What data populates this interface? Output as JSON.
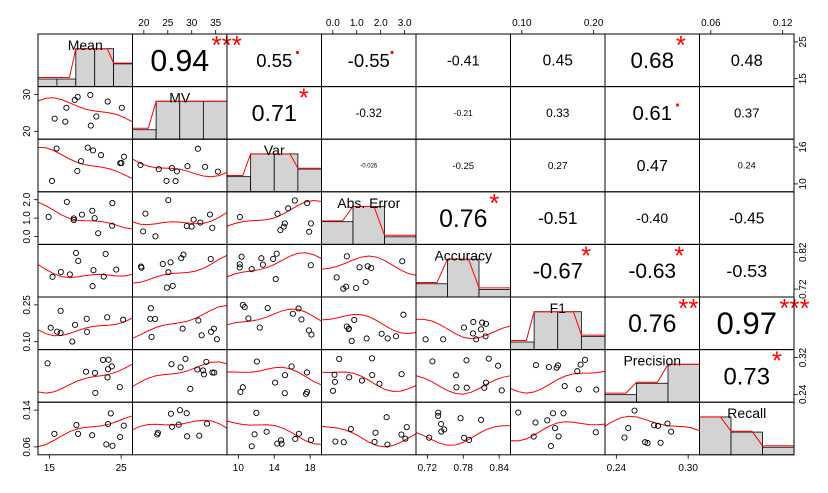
{
  "chart_data": {
    "type": "scatter",
    "variables": [
      "Mean",
      "MV",
      "Var",
      "Abs. Error",
      "Accuracy",
      "F1",
      "Precision",
      "Recall"
    ],
    "correlations": [
      {
        "row": 0,
        "col": 1,
        "r": "0.94",
        "sig": "***"
      },
      {
        "row": 0,
        "col": 2,
        "r": "0.55",
        "sig": "."
      },
      {
        "row": 0,
        "col": 3,
        "r": "-0.55",
        "sig": "."
      },
      {
        "row": 0,
        "col": 4,
        "r": "-0.41",
        "sig": ""
      },
      {
        "row": 0,
        "col": 5,
        "r": "0.45",
        "sig": ""
      },
      {
        "row": 0,
        "col": 6,
        "r": "0.68",
        "sig": "*"
      },
      {
        "row": 0,
        "col": 7,
        "r": "0.48",
        "sig": ""
      },
      {
        "row": 1,
        "col": 2,
        "r": "0.71",
        "sig": "*"
      },
      {
        "row": 1,
        "col": 3,
        "r": "-0.32",
        "sig": ""
      },
      {
        "row": 1,
        "col": 4,
        "r": "-0.21",
        "sig": ""
      },
      {
        "row": 1,
        "col": 5,
        "r": "0.33",
        "sig": ""
      },
      {
        "row": 1,
        "col": 6,
        "r": "0.61",
        "sig": "."
      },
      {
        "row": 1,
        "col": 7,
        "r": "0.37",
        "sig": ""
      },
      {
        "row": 2,
        "col": 3,
        "r": "-0.026",
        "sig": ""
      },
      {
        "row": 2,
        "col": 4,
        "r": "-0.25",
        "sig": ""
      },
      {
        "row": 2,
        "col": 5,
        "r": "0.27",
        "sig": ""
      },
      {
        "row": 2,
        "col": 6,
        "r": "0.47",
        "sig": ""
      },
      {
        "row": 2,
        "col": 7,
        "r": "0.24",
        "sig": ""
      },
      {
        "row": 3,
        "col": 4,
        "r": "0.76",
        "sig": "*"
      },
      {
        "row": 3,
        "col": 5,
        "r": "-0.51",
        "sig": ""
      },
      {
        "row": 3,
        "col": 6,
        "r": "-0.40",
        "sig": ""
      },
      {
        "row": 3,
        "col": 7,
        "r": "-0.45",
        "sig": ""
      },
      {
        "row": 4,
        "col": 5,
        "r": "-0.67",
        "sig": "*"
      },
      {
        "row": 4,
        "col": 6,
        "r": "-0.63",
        "sig": "*"
      },
      {
        "row": 4,
        "col": 7,
        "r": "-0.53",
        "sig": ""
      },
      {
        "row": 5,
        "col": 6,
        "r": "0.76",
        "sig": "**"
      },
      {
        "row": 5,
        "col": 7,
        "r": "0.97",
        "sig": "***"
      },
      {
        "row": 6,
        "col": 7,
        "r": "0.73",
        "sig": "*"
      }
    ],
    "histograms": [
      {
        "var": "Mean",
        "bars": [
          0.2,
          0.2,
          1.0,
          1.0,
          0.6
        ]
      },
      {
        "var": "MV",
        "bars": [
          0.25,
          1.0,
          1.0,
          1.0
        ]
      },
      {
        "var": "Var",
        "bars": [
          0.4,
          1.0,
          1.0,
          0.6
        ]
      },
      {
        "var": "Abs. Error",
        "bars": [
          0.6,
          1.0,
          0.2
        ]
      },
      {
        "var": "Accuracy",
        "bars": [
          0.35,
          1.0,
          0.2
        ]
      },
      {
        "var": "F1",
        "bars": [
          0.2,
          1.0,
          1.0,
          0.35
        ]
      },
      {
        "var": "Precision",
        "bars": [
          0.2,
          0.5,
          1.0
        ]
      },
      {
        "var": "Recall",
        "bars": [
          1.0,
          0.6,
          0.2
        ]
      }
    ],
    "scatter_samples": [
      {
        "x": [
          14.5,
          22,
          23,
          24,
          25,
          26,
          27,
          28,
          30,
          31
        ],
        "y": [
          16,
          24,
          25,
          24.5,
          27,
          28,
          30,
          32,
          33,
          34
        ]
      },
      {
        "x": [
          0.1,
          0.3,
          0.4,
          0.5,
          0.6,
          0.7,
          0.8,
          0.9
        ]
      }
    ],
    "tick_labels": {
      "top": [
        {
          "col": 1,
          "labels": [
            "20",
            "25",
            "30",
            "35"
          ]
        },
        {
          "col": 3,
          "labels": [
            "0.0",
            "1.0",
            "2.0",
            "3.0"
          ]
        },
        {
          "col": 5,
          "labels": [
            "0.10",
            "0.20"
          ]
        },
        {
          "col": 7,
          "labels": [
            "0.06",
            "0.12"
          ]
        }
      ],
      "bottom": [
        {
          "col": 0,
          "labels": [
            "15",
            "25"
          ]
        },
        {
          "col": 2,
          "labels": [
            "10",
            "14",
            "18"
          ]
        },
        {
          "col": 4,
          "labels": [
            "0.72",
            "0.78",
            "0.84"
          ]
        },
        {
          "col": 6,
          "labels": [
            "0.24",
            "0.30"
          ]
        }
      ],
      "left": [
        {
          "row": 1,
          "labels": [
            "20",
            "30"
          ]
        },
        {
          "row": 3,
          "labels": [
            "0.0",
            "1.0",
            "2.0"
          ]
        },
        {
          "row": 5,
          "labels": [
            "0.10",
            "0.25"
          ]
        },
        {
          "row": 7,
          "labels": [
            "0.06",
            "0.14"
          ]
        }
      ],
      "right": [
        {
          "row": 0,
          "labels": [
            "15",
            "25"
          ]
        },
        {
          "row": 2,
          "labels": [
            "10",
            "16"
          ]
        },
        {
          "row": 4,
          "labels": [
            "0.72",
            "0.82"
          ]
        },
        {
          "row": 6,
          "labels": [
            "0.24",
            "0.32"
          ]
        }
      ]
    },
    "colors": {
      "points": "#000000",
      "smooth": "#ff0000",
      "bars": "#d3d3d3",
      "stars": "#ff0000"
    }
  }
}
